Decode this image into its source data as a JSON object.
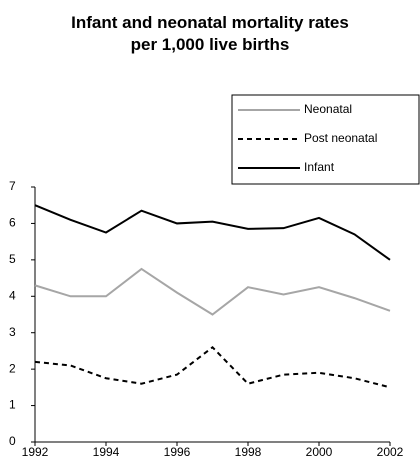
{
  "chart_data": {
    "type": "line",
    "title": "Infant and neonatal mortality rates per 1,000 live births",
    "x": [
      1992,
      1993,
      1994,
      1995,
      1996,
      1997,
      1998,
      1999,
      2000,
      2001,
      2002
    ],
    "series": [
      {
        "name": "Neonatal",
        "color": "#a6a6a6",
        "dashed": false,
        "values": [
          4.3,
          4.0,
          4.0,
          4.75,
          4.1,
          3.5,
          4.25,
          4.05,
          4.25,
          3.95,
          3.6
        ]
      },
      {
        "name": "Post neonatal",
        "color": "#000000",
        "dashed": true,
        "values": [
          2.2,
          2.1,
          1.75,
          1.6,
          1.85,
          2.6,
          1.6,
          1.85,
          1.9,
          1.75,
          1.5
        ]
      },
      {
        "name": "Infant",
        "color": "#000000",
        "dashed": false,
        "values": [
          6.5,
          6.1,
          5.75,
          6.35,
          6.0,
          6.05,
          5.85,
          5.87,
          6.15,
          5.7,
          5.0
        ]
      }
    ],
    "xlim": [
      1992,
      2002
    ],
    "xticks": [
      1992,
      1994,
      1996,
      1998,
      2000,
      2002
    ],
    "ylim": [
      0,
      7
    ],
    "yticks": [
      0,
      1,
      2,
      3,
      4,
      5,
      6,
      7
    ],
    "grid": false,
    "legend": "upper right"
  }
}
